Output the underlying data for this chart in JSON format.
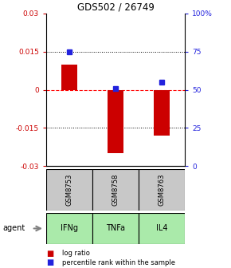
{
  "title": "GDS502 / 26749",
  "samples": [
    "GSM8753",
    "GSM8758",
    "GSM8763"
  ],
  "agents": [
    "IFNg",
    "TNFa",
    "IL4"
  ],
  "log_ratios": [
    0.01,
    -0.025,
    -0.018
  ],
  "percentile_ranks": [
    75,
    51,
    55
  ],
  "bar_color": "#cc0000",
  "dot_color": "#2222dd",
  "ylim_left": [
    -0.03,
    0.03
  ],
  "ylim_right": [
    0,
    100
  ],
  "yticks_left": [
    -0.03,
    -0.015,
    0,
    0.015,
    0.03
  ],
  "yticks_right": [
    0,
    25,
    50,
    75,
    100
  ],
  "ytick_labels_left": [
    "-0.03",
    "-0.015",
    "0",
    "0.015",
    "0.03"
  ],
  "ytick_labels_right": [
    "0",
    "25",
    "50",
    "75",
    "100%"
  ],
  "sample_box_color": "#c8c8c8",
  "agent_box_color": "#aaeaaa",
  "legend_log": "log ratio",
  "legend_pct": "percentile rank within the sample"
}
